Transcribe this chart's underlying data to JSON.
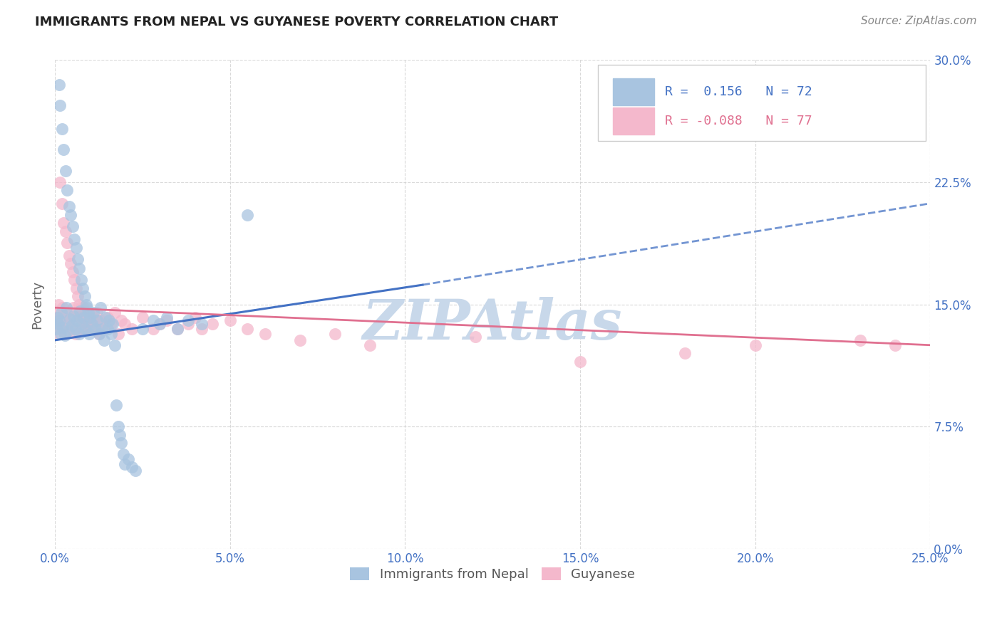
{
  "title": "IMMIGRANTS FROM NEPAL VS GUYANESE POVERTY CORRELATION CHART",
  "source": "Source: ZipAtlas.com",
  "xlim": [
    0.0,
    25.0
  ],
  "ylim": [
    0.0,
    30.0
  ],
  "ylabel": "Poverty",
  "nepal_r": 0.156,
  "nepal_n": 72,
  "guyanese_r": -0.088,
  "guyanese_n": 77,
  "nepal_color": "#a8c4e0",
  "guyanese_color": "#f4b8cc",
  "nepal_line_color": "#4472c4",
  "guyanese_line_color": "#e07090",
  "watermark": "ZIPAtlas",
  "watermark_color": "#c8d8ea",
  "background_color": "#ffffff",
  "grid_color": "#d0d0d0",
  "nepal_scatter_x": [
    0.05,
    0.08,
    0.1,
    0.12,
    0.13,
    0.15,
    0.17,
    0.18,
    0.2,
    0.22,
    0.25,
    0.28,
    0.3,
    0.32,
    0.35,
    0.38,
    0.4,
    0.42,
    0.45,
    0.48,
    0.5,
    0.52,
    0.55,
    0.58,
    0.6,
    0.62,
    0.65,
    0.68,
    0.7,
    0.72,
    0.75,
    0.78,
    0.8,
    0.82,
    0.85,
    0.88,
    0.9,
    0.92,
    0.95,
    0.98,
    1.0,
    1.05,
    1.1,
    1.15,
    1.2,
    1.25,
    1.3,
    1.35,
    1.4,
    1.45,
    1.5,
    1.55,
    1.6,
    1.65,
    1.7,
    1.75,
    1.8,
    1.85,
    1.9,
    1.95,
    2.0,
    2.1,
    2.2,
    2.3,
    2.5,
    2.8,
    3.0,
    3.2,
    3.5,
    3.8,
    4.2,
    5.5
  ],
  "nepal_scatter_y": [
    13.5,
    14.2,
    13.8,
    28.5,
    14.0,
    27.2,
    13.2,
    14.5,
    25.8,
    13.6,
    24.5,
    13.1,
    23.2,
    14.8,
    22.0,
    13.4,
    21.0,
    14.1,
    20.5,
    13.7,
    19.8,
    14.3,
    19.0,
    13.5,
    18.5,
    14.0,
    17.8,
    13.2,
    17.2,
    14.6,
    16.5,
    13.8,
    16.0,
    14.2,
    15.5,
    13.5,
    15.0,
    14.8,
    14.5,
    13.2,
    14.2,
    13.8,
    14.5,
    13.5,
    14.0,
    13.2,
    14.8,
    13.5,
    12.8,
    14.2,
    13.5,
    14.0,
    13.2,
    13.8,
    12.5,
    8.8,
    7.5,
    7.0,
    6.5,
    5.8,
    5.2,
    5.5,
    5.0,
    4.8,
    13.5,
    14.0,
    13.8,
    14.2,
    13.5,
    14.0,
    13.8,
    20.5
  ],
  "guyanese_scatter_x": [
    0.05,
    0.08,
    0.1,
    0.12,
    0.13,
    0.15,
    0.17,
    0.18,
    0.2,
    0.22,
    0.25,
    0.28,
    0.3,
    0.32,
    0.35,
    0.38,
    0.4,
    0.42,
    0.45,
    0.48,
    0.5,
    0.52,
    0.55,
    0.58,
    0.6,
    0.62,
    0.65,
    0.68,
    0.7,
    0.72,
    0.75,
    0.78,
    0.8,
    0.82,
    0.85,
    0.88,
    0.9,
    0.92,
    0.95,
    0.98,
    1.0,
    1.05,
    1.1,
    1.15,
    1.2,
    1.25,
    1.3,
    1.35,
    1.4,
    1.5,
    1.6,
    1.7,
    1.8,
    1.9,
    2.0,
    2.2,
    2.5,
    2.8,
    3.0,
    3.2,
    3.5,
    3.8,
    4.0,
    4.2,
    4.5,
    5.0,
    5.5,
    6.0,
    7.0,
    8.0,
    9.0,
    12.0,
    15.0,
    18.0,
    20.0,
    23.0,
    24.0
  ],
  "guyanese_scatter_y": [
    14.2,
    13.8,
    15.0,
    14.5,
    13.2,
    22.5,
    14.0,
    13.5,
    21.2,
    14.8,
    20.0,
    13.2,
    19.5,
    14.5,
    18.8,
    13.8,
    18.0,
    14.2,
    17.5,
    13.5,
    17.0,
    14.8,
    16.5,
    13.2,
    16.0,
    14.5,
    15.5,
    13.8,
    15.0,
    14.2,
    14.8,
    13.5,
    14.5,
    14.8,
    14.2,
    13.5,
    14.0,
    13.8,
    13.5,
    14.2,
    14.0,
    13.5,
    14.2,
    13.8,
    14.5,
    13.2,
    14.0,
    13.8,
    13.5,
    14.2,
    13.8,
    14.5,
    13.2,
    14.0,
    13.8,
    13.5,
    14.2,
    13.5,
    13.8,
    14.0,
    13.5,
    13.8,
    14.2,
    13.5,
    13.8,
    14.0,
    13.5,
    13.2,
    12.8,
    13.2,
    12.5,
    13.0,
    11.5,
    12.0,
    12.5,
    12.8,
    12.5
  ],
  "nepal_line_x0": 0.0,
  "nepal_line_y0": 12.8,
  "nepal_line_x1": 10.5,
  "nepal_line_y1": 16.2,
  "nepal_dash_x0": 10.5,
  "nepal_dash_y0": 16.2,
  "nepal_dash_x1": 25.0,
  "nepal_dash_y1": 21.2,
  "guyanese_line_x0": 0.0,
  "guyanese_line_y0": 14.8,
  "guyanese_line_x1": 25.0,
  "guyanese_line_y1": 12.5
}
